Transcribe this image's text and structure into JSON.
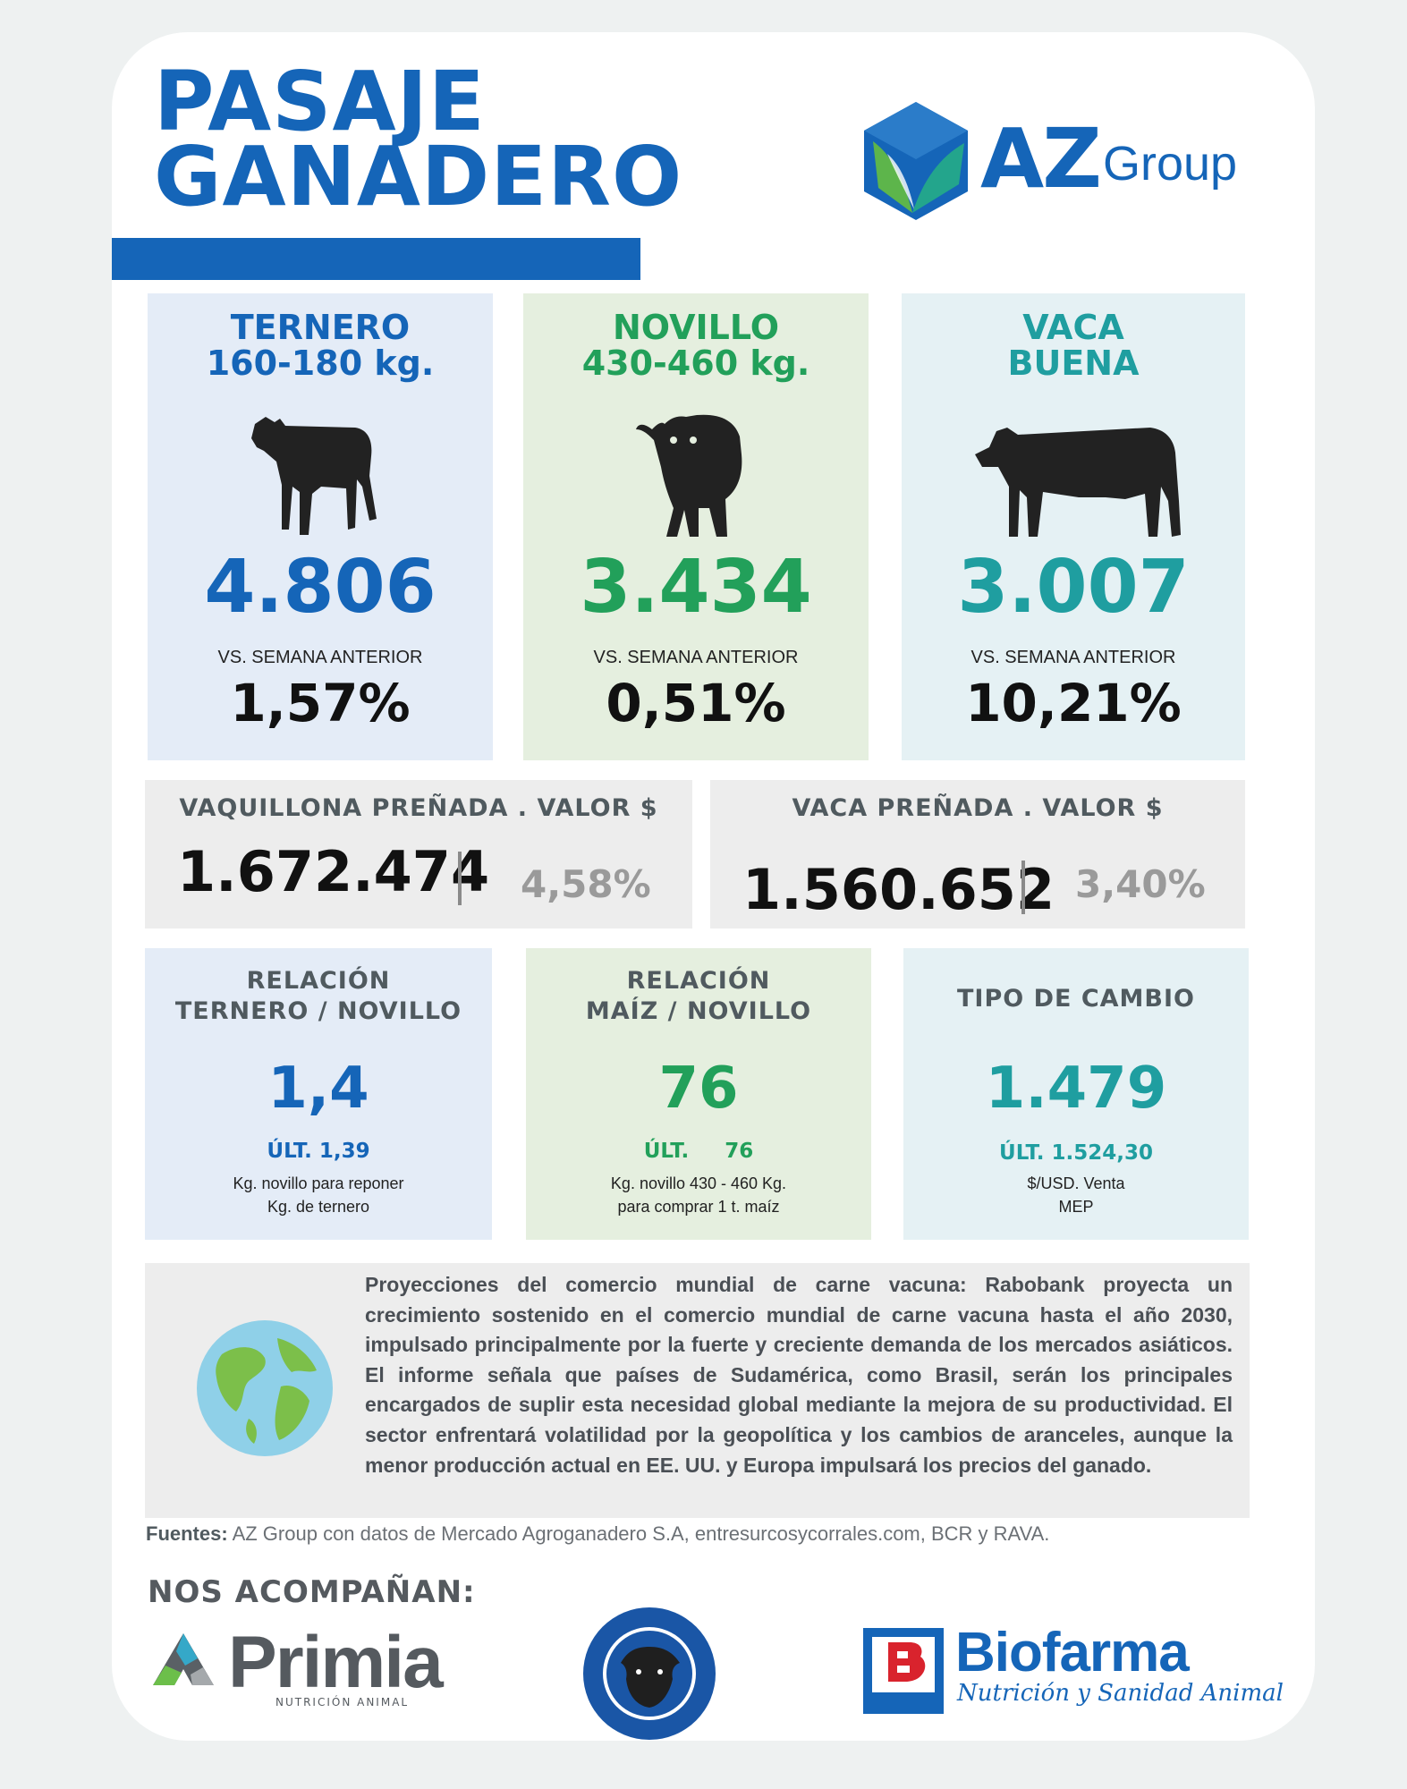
{
  "title": {
    "line1": "PASAJE",
    "line2": "GANADERO"
  },
  "brand": {
    "az": "AZ",
    "group": "Group"
  },
  "top_cards": [
    {
      "name_line1": "TERNERO",
      "name_line2": "160-180 kg.",
      "value": "4.806",
      "vs_label": "VS. SEMANA ANTERIOR",
      "change": "1,57%",
      "animal_icon": "calf-icon",
      "accent": "#1565b8"
    },
    {
      "name_line1": "NOVILLO",
      "name_line2": "430-460 kg.",
      "value": "3.434",
      "vs_label": "VS. SEMANA ANTERIOR",
      "change": "0,51%",
      "animal_icon": "steer-icon",
      "accent": "#22a05a"
    },
    {
      "name_line1": "VACA",
      "name_line2": "BUENA",
      "value": "3.007",
      "vs_label": "VS. SEMANA ANTERIOR",
      "change": "10,21%",
      "animal_icon": "cow-icon",
      "accent": "#1f9ea0"
    }
  ],
  "pregnant": [
    {
      "label": "VAQUILLONA  PREÑADA . VALOR $",
      "value": "1.672.474",
      "change": "4,58%"
    },
    {
      "label": "VACA PREÑADA . VALOR $",
      "value": "1.560.652",
      "change": "3,40%"
    }
  ],
  "relations": [
    {
      "head_line1": "RELACIÓN",
      "head_line2": "TERNERO  / NOVILLO",
      "value": "1,4",
      "ult": "ÚLT.  1,39",
      "note_line1": "Kg. novillo para reponer",
      "note_line2": "Kg. de ternero"
    },
    {
      "head_line1": "RELACIÓN",
      "head_line2": "MAÍZ / NOVILLO",
      "value": "76",
      "ult": "ÚLT.     76",
      "note_line1": "Kg. novillo 430 - 460 Kg.",
      "note_line2": "para comprar 1 t. maíz"
    },
    {
      "head_line1": "TIPO DE CAMBIO",
      "head_line2": "",
      "value": "1.479",
      "ult": "ÚLT. 1.524,30",
      "note_line1": "$/USD.  Venta",
      "note_line2": "MEP"
    }
  ],
  "news": {
    "text": "Proyecciones del comercio mundial de carne vacuna: Rabobank proyecta un crecimiento sostenido en el comercio mundial de carne vacuna hasta el año 2030, impulsado principalmente por la fuerte y creciente demanda de los mercados asiáticos. El informe señala que países de Sudamérica, como Brasil, serán los principales encargados de suplir esta necesidad global mediante la mejora de su productividad. El sector enfrentará volatilidad por la geopolítica y los cambios de aranceles, aunque la menor producción actual en EE. UU. y Europa impulsará los precios del ganado."
  },
  "sources": {
    "label": "Fuentes:",
    "text": " AZ Group con datos de Mercado Agroganadero S.A, entresurcosycorrales.com, BCR y RAVA."
  },
  "sponsors": {
    "title": "NOS ACOMPAÑAN:",
    "primia": "Primia",
    "primia_sub": "NUTRICIÓN ANIMAL",
    "biofarma": "Biofarma",
    "biofarma_sub": "Nutrición y Sanidad Animal"
  }
}
